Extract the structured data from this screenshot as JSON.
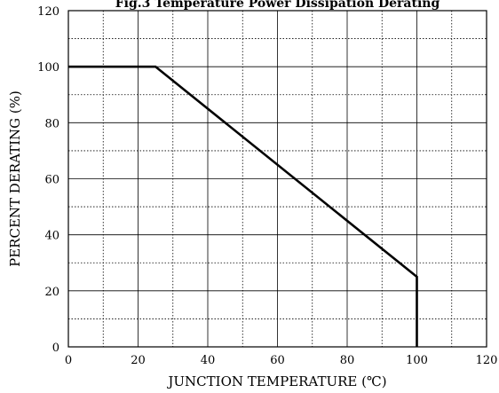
{
  "chart_data": {
    "type": "line",
    "title": "Fig.3 Temperature Power Dissipation Derating",
    "xlabel": "JUNCTION TEMPERATURE (℃)",
    "ylabel": "PERCENT DERATING (%)",
    "xlim": [
      0,
      120
    ],
    "ylim": [
      0,
      120
    ],
    "xticks": [
      "0",
      "20",
      "40",
      "60",
      "80",
      "100",
      "120"
    ],
    "yticks": [
      "0",
      "20",
      "40",
      "60",
      "80",
      "100",
      "120"
    ],
    "grid": true,
    "series": [
      {
        "x": [
          0,
          25,
          100,
          100
        ],
        "y": [
          100,
          100,
          25,
          0
        ]
      }
    ]
  }
}
